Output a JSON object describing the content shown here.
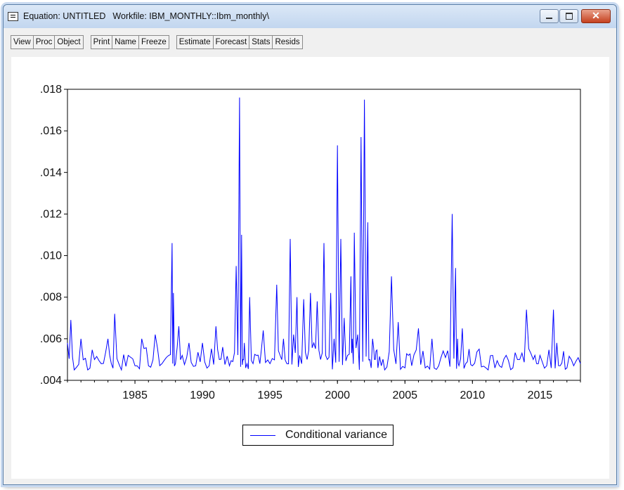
{
  "window": {
    "title": "Equation: UNTITLED",
    "workfile": "Workfile: IBM_MONTHLY::Ibm_monthly\\"
  },
  "toolbar": {
    "groups": [
      [
        "View",
        "Proc",
        "Object"
      ],
      [
        "Print",
        "Name",
        "Freeze"
      ],
      [
        "Estimate",
        "Forecast",
        "Stats",
        "Resids"
      ]
    ]
  },
  "colors": {
    "series": "#0000ff",
    "titlebar": "#c9daf0",
    "close_button": "#c5401f"
  },
  "chart_data": {
    "type": "line",
    "title": "",
    "xlabel": "",
    "ylabel": "",
    "x_range": [
      1980.0,
      2018.0
    ],
    "ylim": [
      0.004,
      0.018
    ],
    "y_ticks": [
      ".004",
      ".006",
      ".008",
      ".010",
      ".012",
      ".014",
      ".016",
      ".018"
    ],
    "x_ticks": [
      "1985",
      "1990",
      "1995",
      "2000",
      "2005",
      "2010",
      "2015"
    ],
    "grid": false,
    "legend_position": "bottom-center",
    "series": [
      {
        "name": "Conditional variance",
        "x": [
          1980.0,
          1980.25,
          1980.5,
          1981.0,
          1981.5,
          1982.0,
          1982.5,
          1983.0,
          1983.25,
          1983.5,
          1984.0,
          1984.5,
          1985.0,
          1985.5,
          1986.0,
          1986.5,
          1987.0,
          1987.5,
          1987.75,
          1987.85,
          1988.0,
          1988.25,
          1988.5,
          1989.0,
          1989.5,
          1990.0,
          1990.5,
          1991.0,
          1991.25,
          1991.5,
          1992.0,
          1992.25,
          1992.5,
          1992.75,
          1992.9,
          1993.0,
          1993.1,
          1993.3,
          1993.5,
          1993.75,
          1994.0,
          1994.25,
          1994.5,
          1995.0,
          1995.5,
          1995.75,
          1996.0,
          1996.25,
          1996.5,
          1996.75,
          1997.0,
          1997.2,
          1997.5,
          1997.75,
          1998.0,
          1998.25,
          1998.5,
          1998.75,
          1999.0,
          1999.25,
          1999.5,
          1999.75,
          2000.0,
          2000.25,
          2000.5,
          2000.75,
          2001.0,
          2001.1,
          2001.25,
          2001.5,
          2001.75,
          2002.0,
          2002.25,
          2002.4,
          2002.6,
          2002.75,
          2002.85,
          2003.0,
          2003.25,
          2003.5,
          2004.0,
          2004.5,
          2005.0,
          2005.25,
          2005.5,
          2006.0,
          2006.5,
          2007.0,
          2007.5,
          2008.0,
          2008.5,
          2008.75,
          2008.9,
          2009.0,
          2009.25,
          2009.5,
          2009.75,
          2010.0,
          2010.5,
          2011.0,
          2011.5,
          2012.0,
          2012.5,
          2013.0,
          2013.5,
          2014.0,
          2014.5,
          2014.75,
          2015.0,
          2015.5,
          2016.0,
          2016.25,
          2016.5,
          2016.75,
          2017.0,
          2017.5,
          2018.0
        ],
        "y": [
          0.0058,
          0.0069,
          0.0045,
          0.006,
          0.0045,
          0.005,
          0.0048,
          0.006,
          0.0048,
          0.0072,
          0.0045,
          0.0052,
          0.0047,
          0.006,
          0.0047,
          0.0062,
          0.0048,
          0.0052,
          0.0106,
          0.0082,
          0.0048,
          0.0066,
          0.0052,
          0.0058,
          0.0047,
          0.0058,
          0.0047,
          0.0066,
          0.005,
          0.0056,
          0.0047,
          0.0049,
          0.0095,
          0.0176,
          0.011,
          0.005,
          0.0058,
          0.0048,
          0.008,
          0.0048,
          0.0052,
          0.0048,
          0.0064,
          0.0048,
          0.0086,
          0.0052,
          0.006,
          0.0048,
          0.0108,
          0.0062,
          0.008,
          0.0052,
          0.0079,
          0.005,
          0.0082,
          0.0058,
          0.0078,
          0.005,
          0.0106,
          0.005,
          0.0082,
          0.006,
          0.0153,
          0.0108,
          0.007,
          0.0052,
          0.009,
          0.006,
          0.0111,
          0.0062,
          0.0157,
          0.0175,
          0.0116,
          0.005,
          0.006,
          0.005,
          0.0054,
          0.0046,
          0.0047,
          0.0045,
          0.009,
          0.0068,
          0.0046,
          0.0052,
          0.0047,
          0.0065,
          0.0046,
          0.006,
          0.0047,
          0.0051,
          0.012,
          0.0094,
          0.006,
          0.0047,
          0.0065,
          0.0048,
          0.0055,
          0.0047,
          0.0055,
          0.0046,
          0.0052,
          0.0047,
          0.0052,
          0.0046,
          0.005,
          0.0074,
          0.005,
          0.0048,
          0.0052,
          0.0047,
          0.0074,
          0.0058,
          0.0047,
          0.0054,
          0.0046,
          0.0047,
          0.0048
        ]
      }
    ]
  }
}
